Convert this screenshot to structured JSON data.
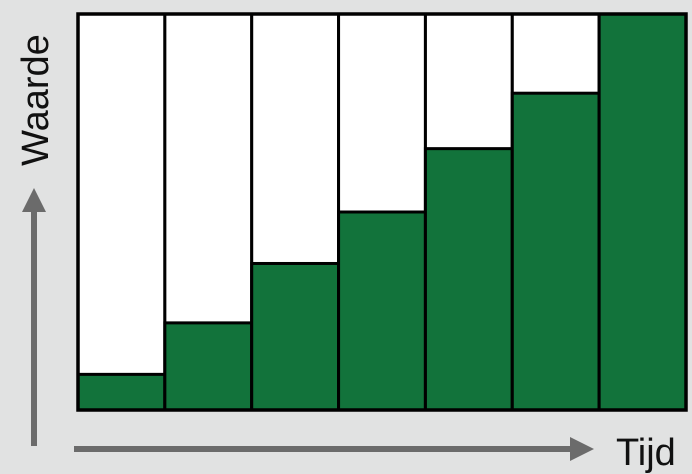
{
  "chart_data": {
    "type": "bar",
    "categories": [
      "",
      "",
      "",
      "",
      "",
      "",
      ""
    ],
    "values": [
      9,
      22,
      37,
      50,
      66,
      80,
      100
    ],
    "ylim": [
      0,
      100
    ],
    "xlabel": "Tijd",
    "ylabel": "Waarde",
    "grid": false,
    "legend": "none",
    "colors": {
      "bar_fill": "#12733b",
      "bar_background": "#ffffff",
      "outline": "#000000",
      "arrow": "#6b6b6b",
      "page_background": "#e1e2e2"
    }
  }
}
